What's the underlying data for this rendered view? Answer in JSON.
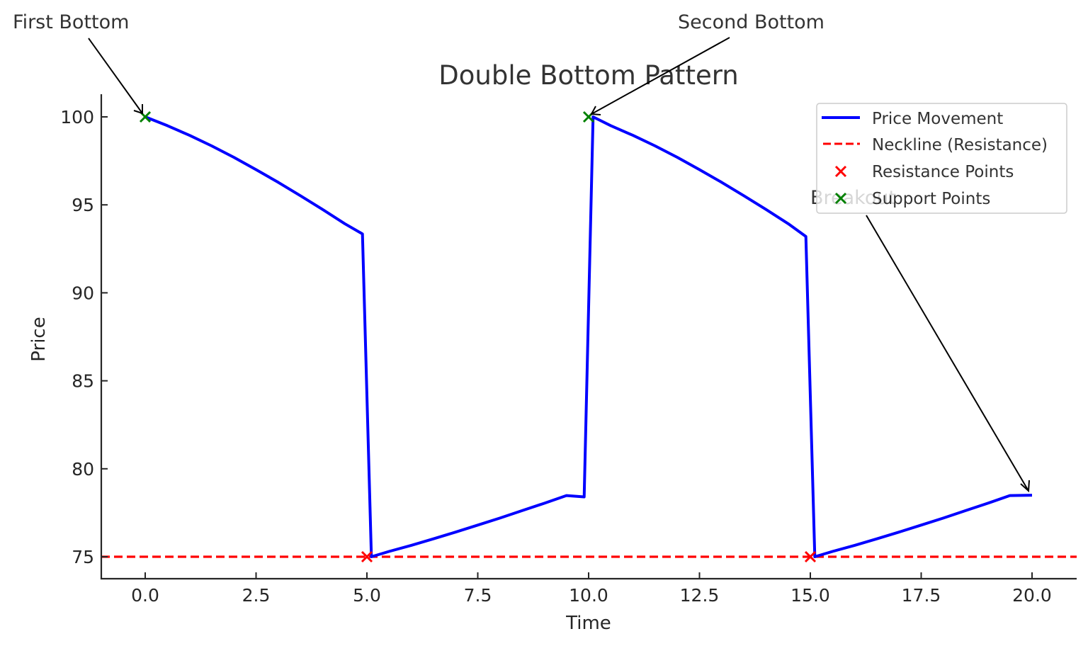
{
  "chart_data": {
    "type": "line",
    "title": "Double Bottom Pattern",
    "xlabel": "Time",
    "ylabel": "Price",
    "xlim": [
      -1.0,
      21.0
    ],
    "ylim": [
      73.8,
      101.3
    ],
    "grid": false,
    "legend_position": "upper right",
    "x_ticks": [
      0.0,
      2.5,
      5.0,
      7.5,
      10.0,
      12.5,
      15.0,
      17.5,
      20.0
    ],
    "x_tick_labels": [
      "0.0",
      "2.5",
      "5.0",
      "7.5",
      "10.0",
      "12.5",
      "15.0",
      "17.5",
      "20.0"
    ],
    "y_ticks": [
      75,
      80,
      85,
      90,
      95,
      100
    ],
    "y_tick_labels": [
      "75",
      "80",
      "85",
      "90",
      "95",
      "100"
    ],
    "series": [
      {
        "name": "Price Movement",
        "type": "line",
        "color": "#0000ff",
        "x": [
          0.0,
          0.5,
          1.0,
          1.5,
          2.0,
          2.5,
          3.0,
          3.5,
          4.0,
          4.5,
          4.9,
          5.1,
          5.5,
          6.0,
          6.5,
          7.0,
          7.5,
          8.0,
          8.5,
          9.0,
          9.5,
          9.9,
          10.1,
          10.5,
          11.0,
          11.5,
          12.0,
          12.5,
          13.0,
          13.5,
          14.0,
          14.5,
          14.9,
          15.1,
          15.5,
          16.0,
          16.5,
          17.0,
          17.5,
          18.0,
          18.5,
          19.0,
          19.5,
          20.0
        ],
        "values": [
          100.0,
          99.5,
          98.95,
          98.35,
          97.7,
          97.0,
          96.28,
          95.52,
          94.74,
          93.93,
          93.35,
          75.0,
          75.3,
          75.65,
          76.02,
          76.4,
          76.8,
          77.2,
          77.62,
          78.04,
          78.48,
          78.4,
          100.0,
          99.5,
          98.95,
          98.35,
          97.7,
          97.0,
          96.28,
          95.52,
          94.74,
          93.93,
          93.2,
          75.0,
          75.3,
          75.65,
          76.02,
          76.4,
          76.8,
          77.2,
          77.62,
          78.04,
          78.48,
          78.5
        ]
      },
      {
        "name": "Neckline (Resistance)",
        "type": "hline",
        "style": "dashed",
        "color": "#ff0000",
        "y": 75
      },
      {
        "name": "Resistance Points",
        "type": "scatter",
        "marker": "x",
        "color": "#ff0000",
        "x": [
          5,
          15
        ],
        "values": [
          75,
          75
        ]
      },
      {
        "name": "Support Points",
        "type": "scatter",
        "marker": "x",
        "color": "#008000",
        "x": [
          0,
          10
        ],
        "values": [
          100,
          100
        ]
      }
    ],
    "legend": [
      "Price Movement",
      "Neckline (Resistance)",
      "Resistance Points",
      "Support Points"
    ],
    "annotations": [
      {
        "text": "First Bottom",
        "xy": [
          0,
          100
        ]
      },
      {
        "text": "Second Bottom",
        "xy": [
          10,
          100
        ]
      },
      {
        "text": "Breakout",
        "xy": [
          20,
          78.5
        ]
      }
    ]
  }
}
